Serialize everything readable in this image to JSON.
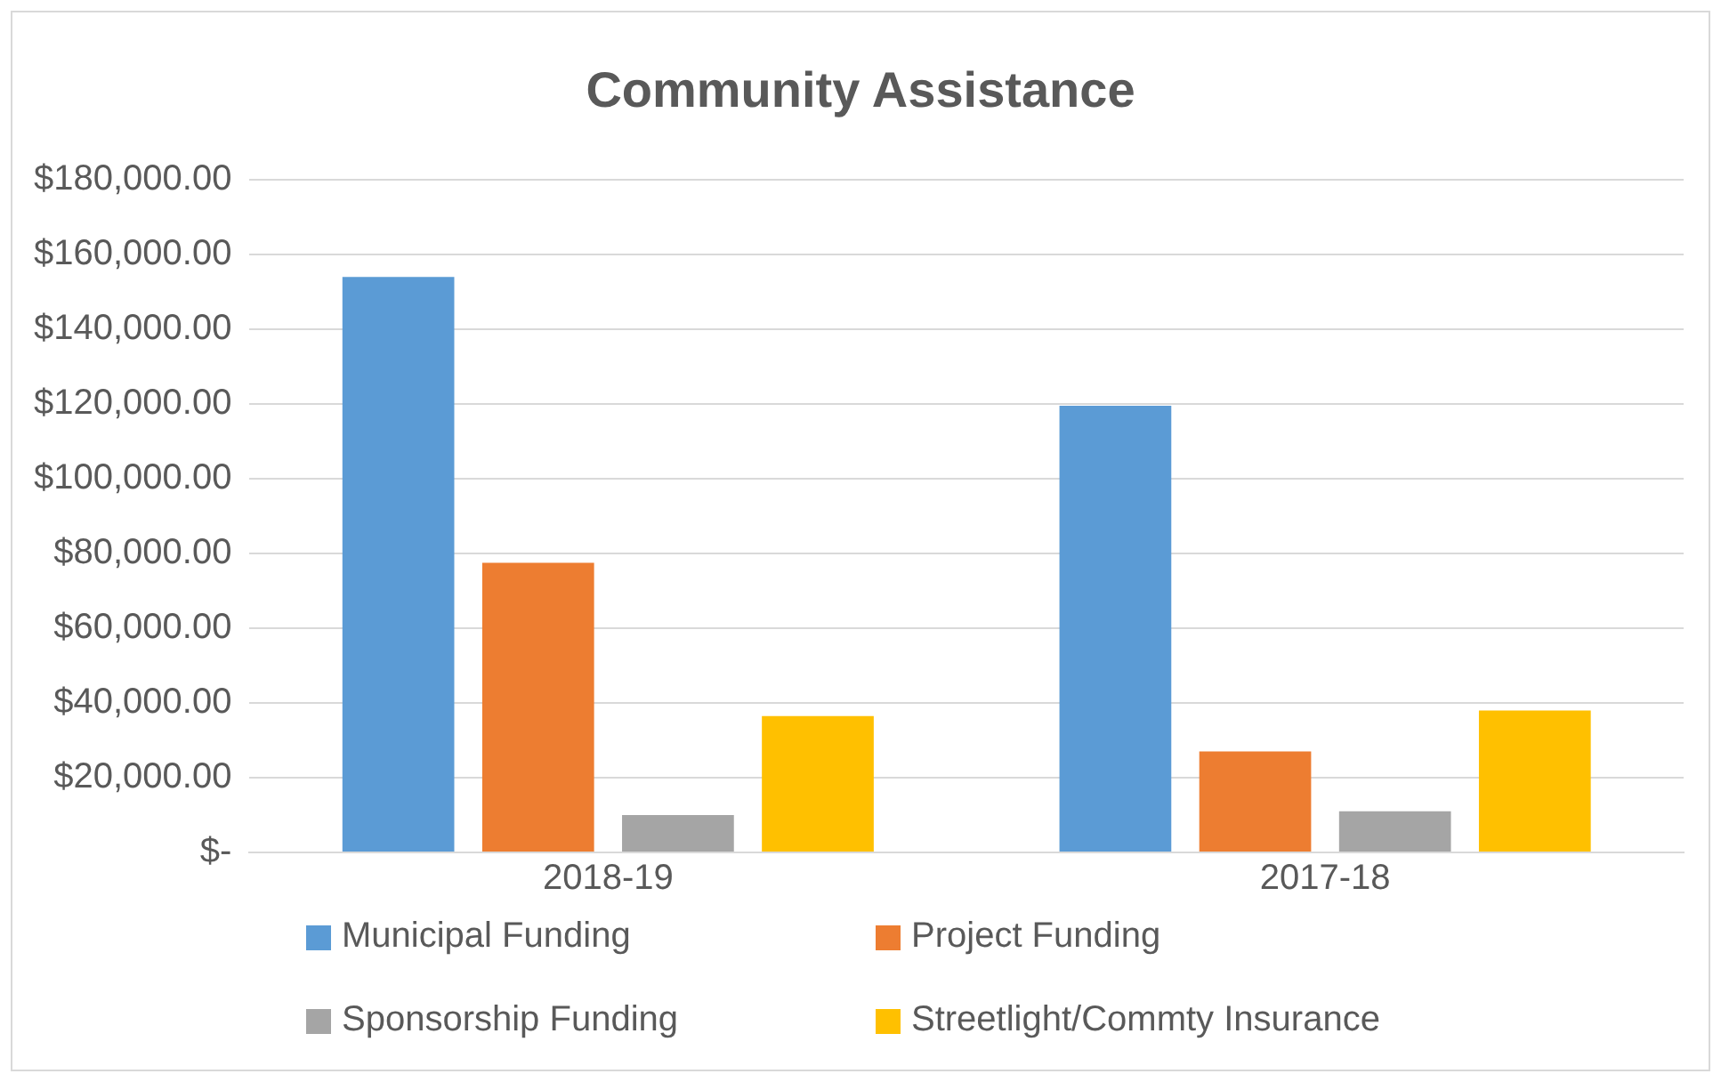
{
  "chart_data": {
    "type": "bar",
    "title": "Community Assistance",
    "categories": [
      "2018-19",
      "2017-18"
    ],
    "series": [
      {
        "name": "Municipal Funding",
        "color": "#5b9bd5",
        "values": [
          154000,
          119500
        ]
      },
      {
        "name": "Project Funding",
        "color": "#ed7d31",
        "values": [
          77500,
          27000
        ]
      },
      {
        "name": "Sponsorship Funding",
        "color": "#a5a5a5",
        "values": [
          10000,
          11000
        ]
      },
      {
        "name": "Streetlight/Commty Insurance",
        "color": "#ffc000",
        "values": [
          36500,
          38000
        ]
      }
    ],
    "ylim": [
      0,
      180000
    ],
    "yticks": [
      {
        "value": 0,
        "label": "$-"
      },
      {
        "value": 20000,
        "label": "$20,000.00"
      },
      {
        "value": 40000,
        "label": "$40,000.00"
      },
      {
        "value": 60000,
        "label": "$60,000.00"
      },
      {
        "value": 80000,
        "label": "$80,000.00"
      },
      {
        "value": 100000,
        "label": "$100,000.00"
      },
      {
        "value": 120000,
        "label": "$120,000.00"
      },
      {
        "value": 140000,
        "label": "$140,000.00"
      },
      {
        "value": 160000,
        "label": "$160,000.00"
      },
      {
        "value": 180000,
        "label": "$180,000.00"
      }
    ],
    "grid": "y",
    "legend": "bottom"
  }
}
